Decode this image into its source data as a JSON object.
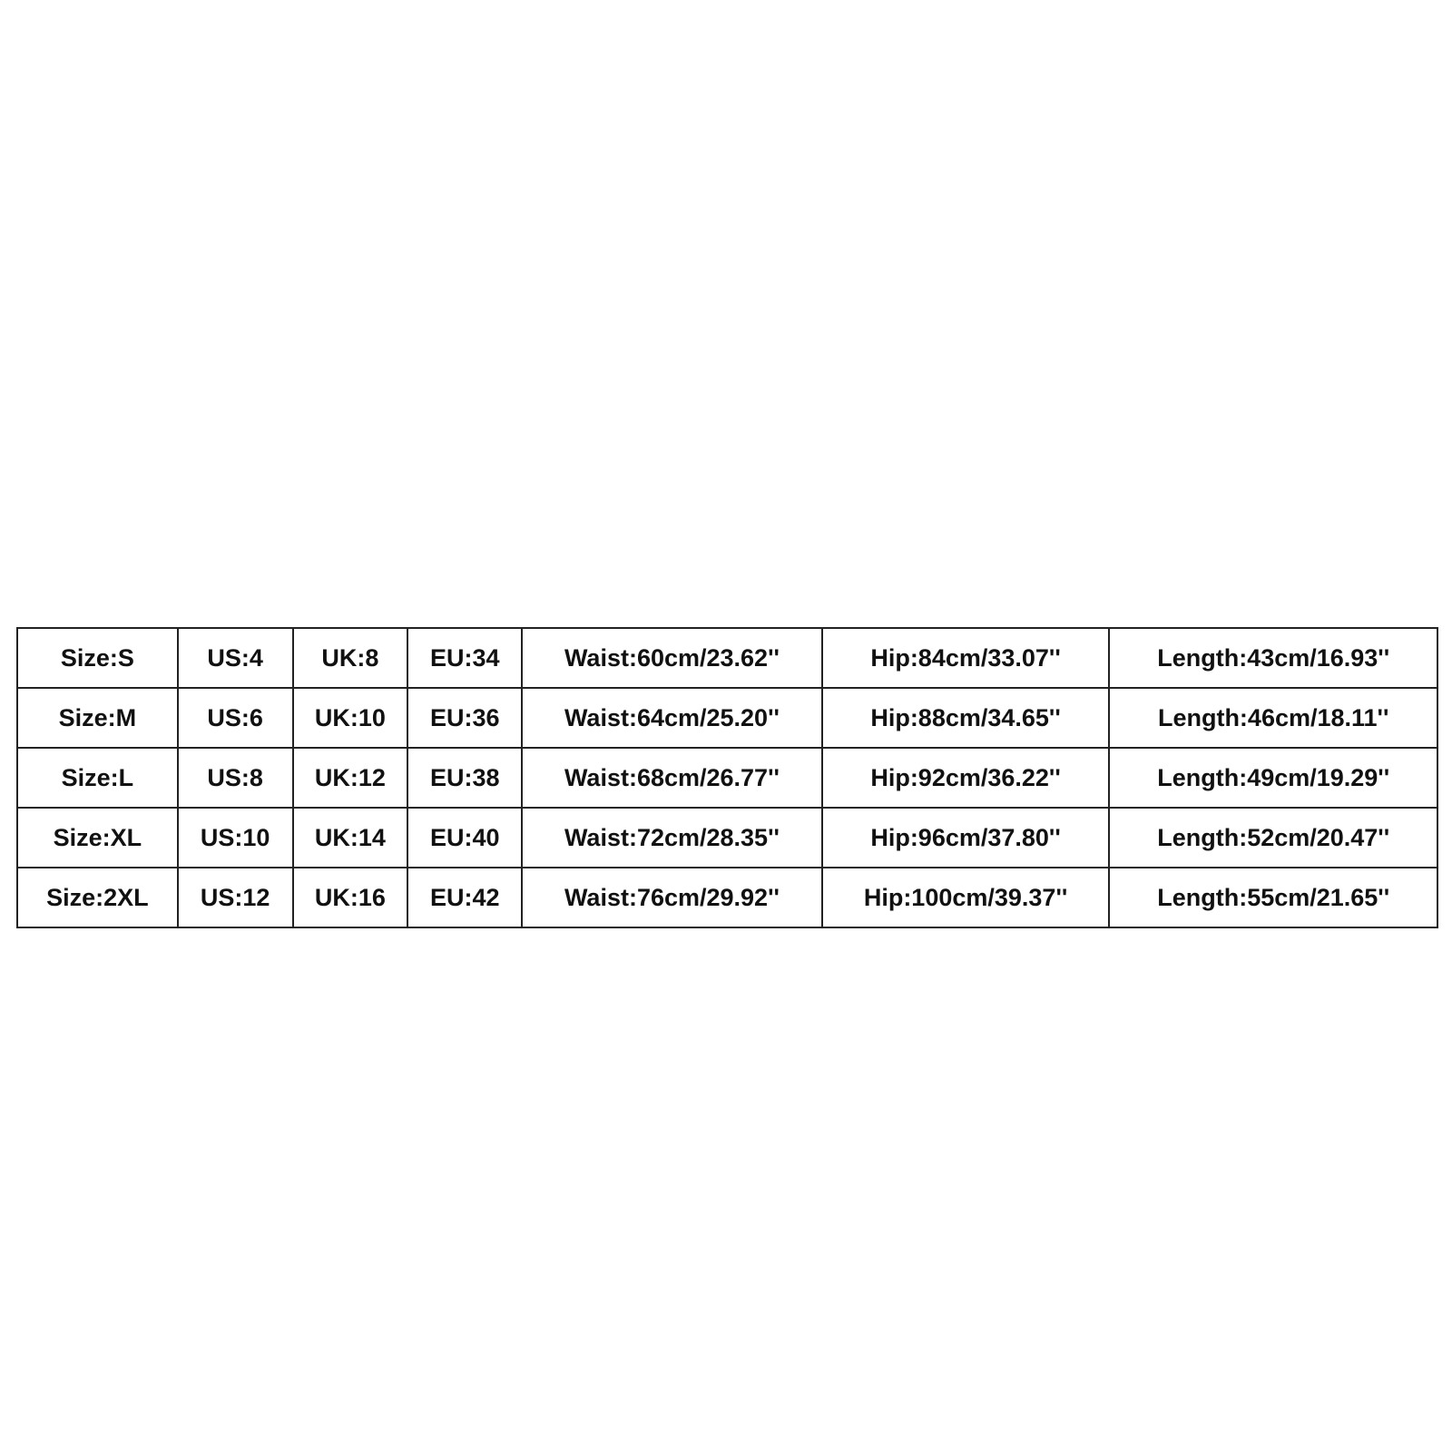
{
  "size_chart": {
    "rows": [
      [
        "Size:S",
        "US:4",
        "UK:8",
        "EU:34",
        "Waist:60cm/23.62''",
        "Hip:84cm/33.07''",
        "Length:43cm/16.93''"
      ],
      [
        "Size:M",
        "US:6",
        "UK:10",
        "EU:36",
        "Waist:64cm/25.20''",
        "Hip:88cm/34.65''",
        "Length:46cm/18.11''"
      ],
      [
        "Size:L",
        "US:8",
        "UK:12",
        "EU:38",
        "Waist:68cm/26.77''",
        "Hip:92cm/36.22''",
        "Length:49cm/19.29''"
      ],
      [
        "Size:XL",
        "US:10",
        "UK:14",
        "EU:40",
        "Waist:72cm/28.35''",
        "Hip:96cm/37.80''",
        "Length:52cm/20.47''"
      ],
      [
        "Size:2XL",
        "US:12",
        "UK:16",
        "EU:42",
        "Waist:76cm/29.92''",
        "Hip:100cm/39.37''",
        "Length:55cm/21.65''"
      ]
    ]
  }
}
